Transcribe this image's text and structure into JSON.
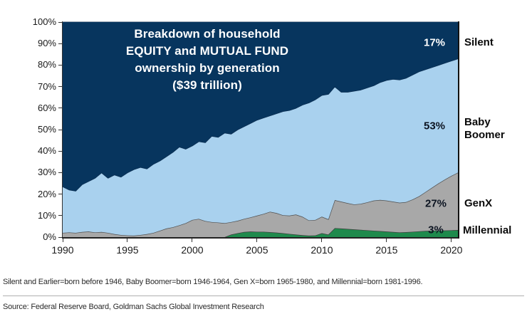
{
  "title_box": {
    "lines": [
      "Breakdown of household",
      "EQUITY and MUTUAL FUND",
      "ownership by generation",
      "($39 trillion)"
    ]
  },
  "annotations": {
    "silent_pct": "17%",
    "boomer_pct": "53%",
    "genx_pct": "27%",
    "millennial_pct": "3%"
  },
  "legend": {
    "silent": "Silent",
    "boomer": "Baby Boomer",
    "genx": "GenX",
    "millennial": "Millennial"
  },
  "footnote": "Silent and Earlier=born before 1946, Baby Boomer=born 1946-1964, Gen X=born 1965-1980, and Millennial=born 1981-1996.",
  "source": "Source: Federal Reserve Board, Goldman Sachs Global Investment Research",
  "colors": {
    "silent_navy": "#07355e",
    "boomer_blue": "#a9d1ee",
    "genx_gray": "#a8a8a8",
    "millennial_green": "#1e8a4c",
    "axis": "#333333"
  },
  "chart_data": {
    "type": "area",
    "stacked": true,
    "normalized_to_100": true,
    "title": "Breakdown of household EQUITY and MUTUAL FUND ownership by generation ($39 trillion)",
    "xlabel": "",
    "ylabel": "",
    "ylim": [
      0,
      100
    ],
    "grid": false,
    "legend_position": "right",
    "x_domain": [
      1990,
      2020.5
    ],
    "y_tick_values": [
      100,
      90,
      80,
      70,
      60,
      50,
      40,
      30,
      20,
      10,
      0
    ],
    "y_tick_labels": [
      "100%",
      "90%",
      "80%",
      "70%",
      "60%",
      "50%",
      "40%",
      "30%",
      "20%",
      "10%",
      "0%"
    ],
    "x_tick_values": [
      1990,
      1995,
      2000,
      2005,
      2010,
      2015,
      2020
    ],
    "x_tick_labels": [
      "1990",
      "1995",
      "2000",
      "2005",
      "2010",
      "2015",
      "2020"
    ],
    "x": [
      1990,
      1990.5,
      1991,
      1991.5,
      1992,
      1992.5,
      1993,
      1993.5,
      1994,
      1994.5,
      1995,
      1995.5,
      1996,
      1996.5,
      1997,
      1997.5,
      1998,
      1998.5,
      1999,
      1999.5,
      2000,
      2000.5,
      2001,
      2001.5,
      2002,
      2002.5,
      2003,
      2003.5,
      2004,
      2004.5,
      2005,
      2005.5,
      2006,
      2006.5,
      2007,
      2007.5,
      2008,
      2008.5,
      2009,
      2009.5,
      2010,
      2010.5,
      2011,
      2011.5,
      2012,
      2012.5,
      2013,
      2013.5,
      2014,
      2014.5,
      2015,
      2015.5,
      2016,
      2016.5,
      2017,
      2017.5,
      2018,
      2018.5,
      2019,
      2019.5,
      2020,
      2020.5
    ],
    "series": [
      {
        "name": "Millennial",
        "end_label": "3%",
        "color": "#1e8a4c",
        "edge": "#3d3d3d",
        "values": [
          0,
          0,
          0,
          0,
          0,
          0,
          0,
          0,
          0,
          0,
          0,
          0,
          0,
          0,
          0,
          0,
          0,
          0,
          0,
          0,
          0,
          0,
          0,
          0,
          0,
          0,
          1.2,
          1.8,
          2.4,
          2.6,
          2.5,
          2.5,
          2.3,
          2.1,
          1.8,
          1.5,
          1.2,
          0.9,
          0.7,
          0.8,
          1.8,
          1.2,
          4.2,
          4,
          3.8,
          3.6,
          3.4,
          3.2,
          3,
          2.8,
          2.6,
          2.4,
          2.2,
          2.3,
          2.5,
          2.7,
          2.9,
          3,
          3,
          3.1,
          3.2,
          3.3
        ]
      },
      {
        "name": "GenX",
        "end_label": "27%",
        "color": "#a8a8a8",
        "edge": "#4f4f4f",
        "values": [
          2,
          2.2,
          2,
          2.4,
          2.6,
          2.2,
          2.4,
          2,
          1.4,
          1,
          0.8,
          0.7,
          1,
          1.4,
          2,
          3,
          4,
          4.6,
          5.5,
          6.5,
          8,
          8.5,
          7.5,
          7,
          6.8,
          6.5,
          5.8,
          5.8,
          6.1,
          6.6,
          7.5,
          8.3,
          9.5,
          9.1,
          8.4,
          8.5,
          9.3,
          8.6,
          7.1,
          7.2,
          7.7,
          7.1,
          13,
          12.5,
          12,
          11.6,
          12.1,
          13,
          14,
          14.5,
          14.4,
          14.1,
          13.8,
          14,
          15,
          16.3,
          18.1,
          20,
          22,
          23.7,
          25.3,
          26.7
        ]
      },
      {
        "name": "Baby Boomer",
        "end_label": "53%",
        "color": "#a9d1ee",
        "edge": "#0a2c4f",
        "values": [
          21.5,
          19.8,
          19.5,
          22.1,
          23.4,
          25.3,
          27.6,
          25.5,
          27.6,
          27,
          29.2,
          30.8,
          31.5,
          30.4,
          32,
          32.5,
          33.5,
          34.9,
          36.5,
          34.5,
          34.5,
          36,
          36.5,
          40,
          39.7,
          42,
          41,
          42.4,
          43,
          43.8,
          44.5,
          44.7,
          44.7,
          46.3,
          48.3,
          49,
          49.5,
          52,
          54.7,
          56,
          56.5,
          58.2,
          52.8,
          51,
          51.7,
          52.8,
          53,
          53.3,
          53.5,
          54.7,
          56,
          57,
          57.2,
          57.7,
          58,
          58,
          57,
          56,
          55,
          54.2,
          53.5,
          53
        ]
      },
      {
        "name": "Silent",
        "end_label": "17%",
        "color": "#07355e",
        "edge": null,
        "values": [
          76.5,
          78,
          78.5,
          75.5,
          74,
          72.5,
          70,
          72.5,
          71,
          72,
          70,
          68.5,
          67.5,
          68.2,
          66,
          64.5,
          62.5,
          60.5,
          58,
          59,
          57.5,
          55.5,
          56,
          53,
          53.5,
          51.5,
          52,
          50,
          48.5,
          47,
          45.5,
          44.5,
          43.5,
          42.5,
          41.5,
          41,
          40,
          38.5,
          37.5,
          36,
          34,
          33.5,
          30,
          32.5,
          32.5,
          32,
          31.5,
          30.5,
          29.5,
          28,
          27,
          26.5,
          26.8,
          26,
          24.5,
          23,
          22,
          21,
          20,
          19,
          18,
          17
        ]
      }
    ]
  }
}
